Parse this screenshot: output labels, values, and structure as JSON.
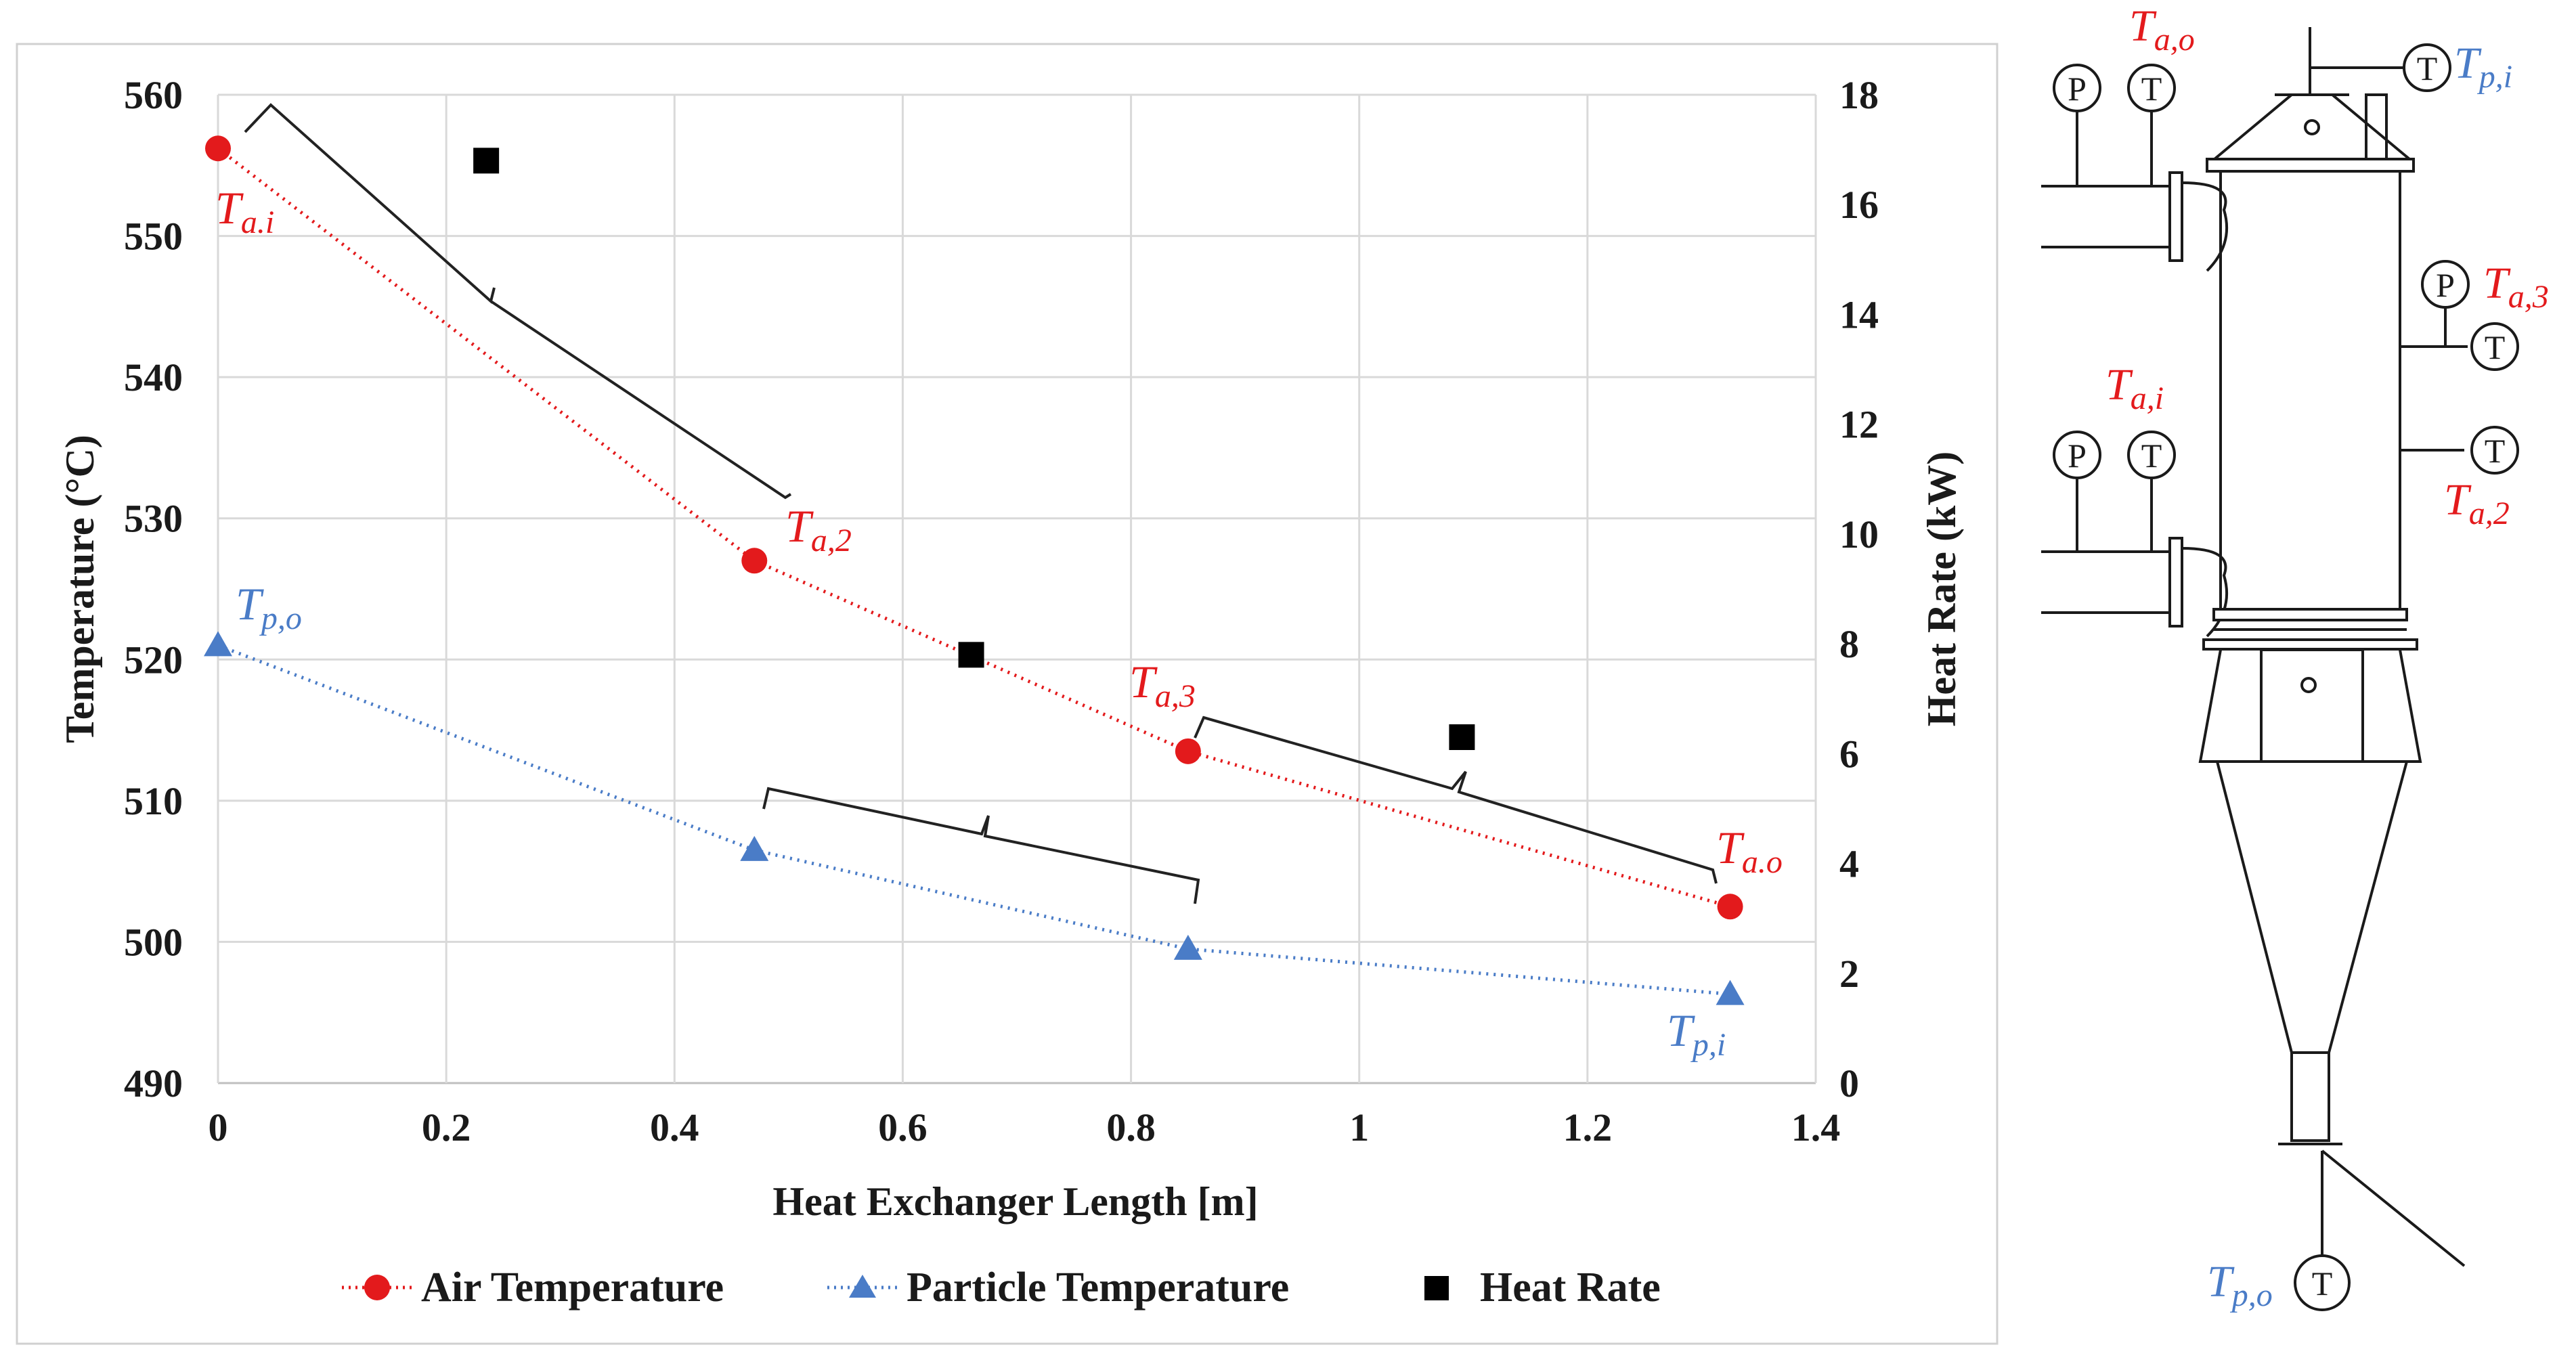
{
  "colors": {
    "air": "#e31a1c",
    "particle": "#4a7cc7",
    "heat": "#000000",
    "grid": "#d9d9d9",
    "axis": "#bfbfbf"
  },
  "chart_data": {
    "type": "line",
    "xlabel": "Heat Exchanger Length [m]",
    "ylabel": "Temperature (°C)",
    "y2label": "Heat Rate (kW)",
    "xlim": [
      0,
      1.4
    ],
    "ylim": [
      490,
      560
    ],
    "y2lim": [
      0,
      18
    ],
    "x_ticks": [
      "0",
      "0.2",
      "0.4",
      "0.6",
      "0.8",
      "1",
      "1.2",
      "1.4"
    ],
    "y_ticks": [
      "490",
      "500",
      "510",
      "520",
      "530",
      "540",
      "550",
      "560"
    ],
    "y2_ticks": [
      "0",
      "2",
      "4",
      "6",
      "8",
      "10",
      "12",
      "14",
      "16",
      "18"
    ],
    "legend_position": "bottom",
    "series": [
      {
        "name": "Air Temperature",
        "axis": "left",
        "marker": "circle",
        "line": "dotted",
        "x": [
          0,
          0.47,
          0.85,
          1.325
        ],
        "values": [
          556.2,
          527.0,
          513.5,
          502.5
        ]
      },
      {
        "name": "Particle Temperature",
        "axis": "left",
        "marker": "triangle",
        "line": "dotted",
        "x": [
          0,
          0.47,
          0.85,
          1.325
        ],
        "values": [
          521.0,
          506.5,
          499.5,
          496.3
        ]
      },
      {
        "name": "Heat Rate",
        "axis": "right",
        "marker": "square",
        "line": "none",
        "x": [
          0.235,
          0.66,
          1.09
        ],
        "values": [
          16.8,
          7.8,
          6.3
        ]
      }
    ],
    "annotations": {
      "air_in": {
        "main": "T",
        "sub": "a.i"
      },
      "air_2": {
        "main": "T",
        "sub": "a,2"
      },
      "air_3": {
        "main": "T",
        "sub": "a,3"
      },
      "air_out": {
        "main": "T",
        "sub": "a.o"
      },
      "part_out": {
        "main": "T",
        "sub": "p,o"
      },
      "part_in": {
        "main": "T",
        "sub": "p,i"
      }
    }
  },
  "diagram": {
    "gauge_p": "P",
    "gauge_t": "T",
    "labels": {
      "t_a_o": {
        "main": "T",
        "sub": "a,o"
      },
      "t_p_i": {
        "main": "T",
        "sub": "p,i"
      },
      "t_a_3": {
        "main": "T",
        "sub": "a,3"
      },
      "t_a_i": {
        "main": "T",
        "sub": "a,i"
      },
      "t_a_2": {
        "main": "T",
        "sub": "a,2"
      },
      "t_p_o": {
        "main": "T",
        "sub": "p,o"
      }
    }
  }
}
